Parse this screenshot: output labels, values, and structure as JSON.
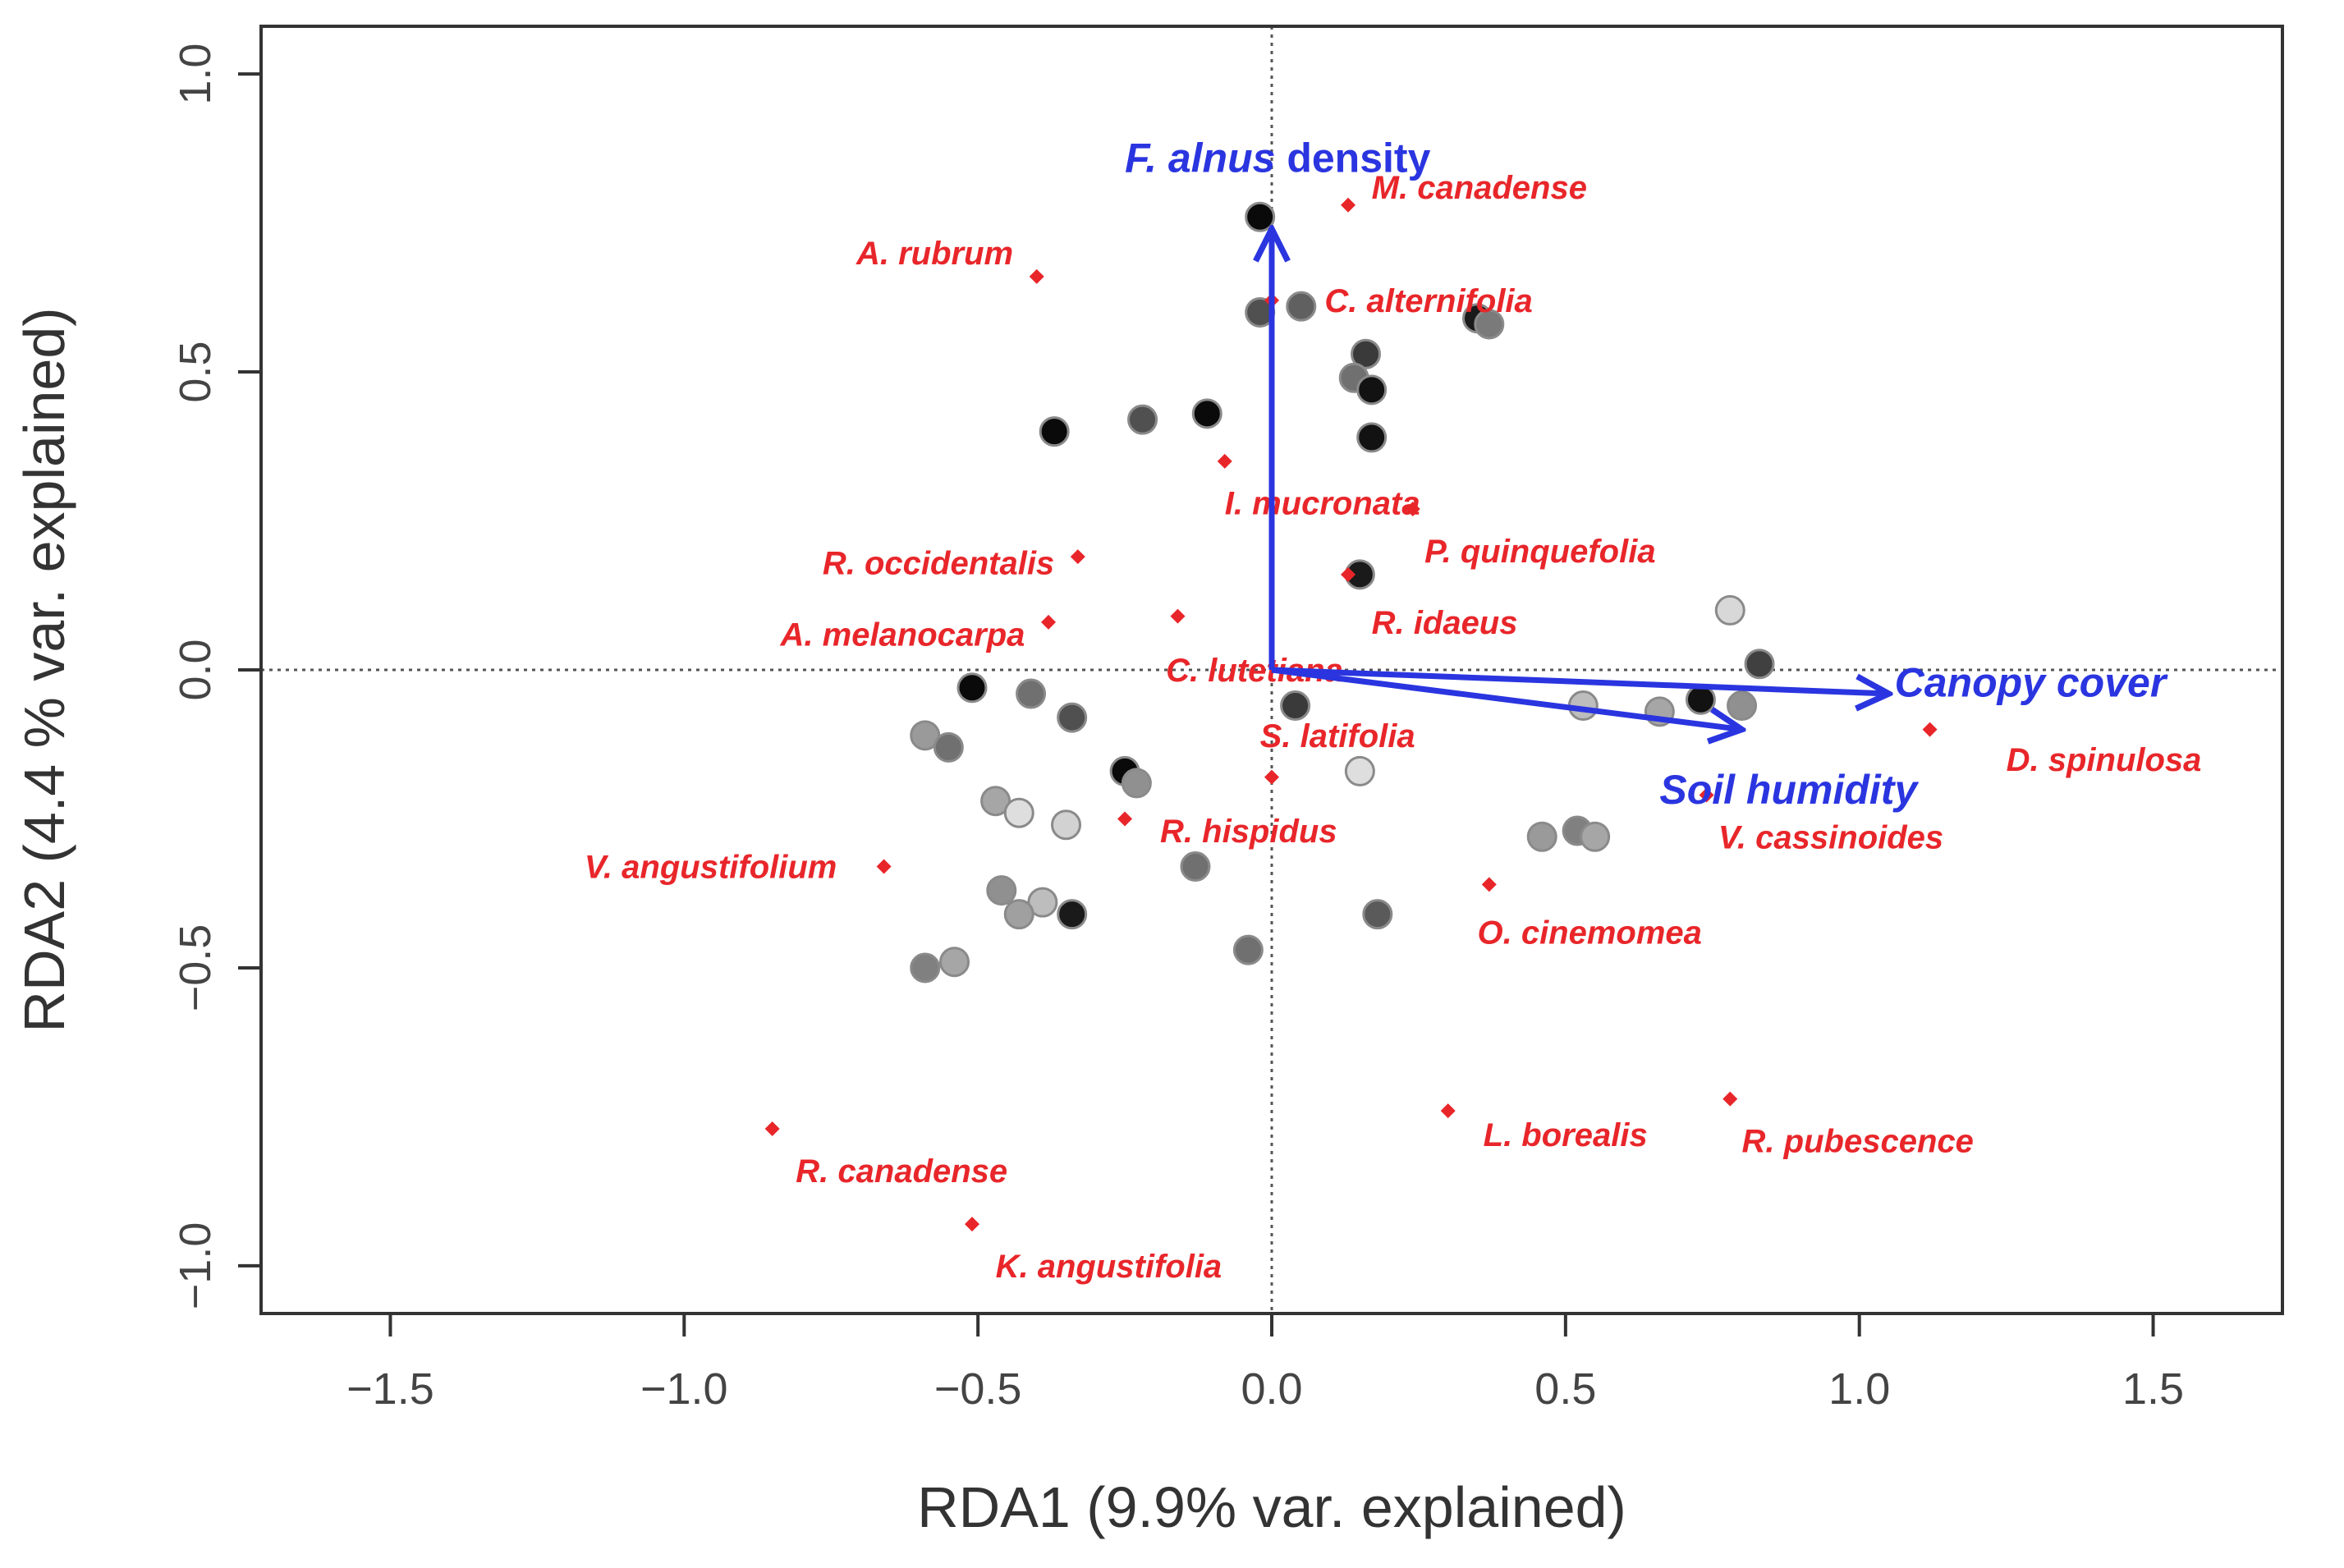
{
  "chart_data": {
    "type": "scatter",
    "subtype": "rda_triplot",
    "title": "",
    "xlabel": "RDA1 (9.9% var. explained)",
    "ylabel": "RDA2 (4.4 % var. explained)",
    "xlim": [
      -1.72,
      1.72
    ],
    "ylim": [
      -1.08,
      1.08
    ],
    "xticks": [
      {
        "value": -1.5,
        "label": "−1.5"
      },
      {
        "value": -1.0,
        "label": "−1.0"
      },
      {
        "value": -0.5,
        "label": "−0.5"
      },
      {
        "value": 0.0,
        "label": "0.0"
      },
      {
        "value": 0.5,
        "label": "0.5"
      },
      {
        "value": 1.0,
        "label": "1.0"
      },
      {
        "value": 1.5,
        "label": "1.5"
      }
    ],
    "yticks": [
      {
        "value": -1.0,
        "label": "−1.0"
      },
      {
        "value": -0.5,
        "label": "−0.5"
      },
      {
        "value": 0.0,
        "label": "0.0"
      },
      {
        "value": 0.5,
        "label": "0.5"
      },
      {
        "value": 1.0,
        "label": "1.0"
      }
    ],
    "grid": false,
    "zero_lines": true,
    "colors": {
      "species": "#e8262a",
      "vectors": "#2a35e0",
      "axes": "#333333"
    },
    "sites": [
      {
        "x": -0.02,
        "y": 0.76,
        "shade": "#0a0a0a"
      },
      {
        "x": -0.02,
        "y": 0.6,
        "shade": "#505050"
      },
      {
        "x": 0.05,
        "y": 0.61,
        "shade": "#606060"
      },
      {
        "x": 0.35,
        "y": 0.59,
        "shade": "#1a1a1a"
      },
      {
        "x": 0.37,
        "y": 0.58,
        "shade": "#7a7a7a"
      },
      {
        "x": 0.16,
        "y": 0.53,
        "shade": "#3a3a3a"
      },
      {
        "x": 0.14,
        "y": 0.49,
        "shade": "#707070"
      },
      {
        "x": 0.17,
        "y": 0.47,
        "shade": "#121212"
      },
      {
        "x": 0.17,
        "y": 0.39,
        "shade": "#121212"
      },
      {
        "x": -0.37,
        "y": 0.4,
        "shade": "#0a0a0a"
      },
      {
        "x": -0.22,
        "y": 0.42,
        "shade": "#505050"
      },
      {
        "x": -0.11,
        "y": 0.43,
        "shade": "#0a0a0a"
      },
      {
        "x": 0.15,
        "y": 0.16,
        "shade": "#1a1a1a"
      },
      {
        "x": 0.78,
        "y": 0.1,
        "shade": "#d8d8d8"
      },
      {
        "x": 0.83,
        "y": 0.01,
        "shade": "#404040"
      },
      {
        "x": 0.73,
        "y": -0.05,
        "shade": "#121212"
      },
      {
        "x": 0.8,
        "y": -0.06,
        "shade": "#909090"
      },
      {
        "x": 0.53,
        "y": -0.06,
        "shade": "#bdbdbd"
      },
      {
        "x": 0.66,
        "y": -0.07,
        "shade": "#a6a6a6"
      },
      {
        "x": 0.04,
        "y": -0.06,
        "shade": "#3a3a3a"
      },
      {
        "x": 0.15,
        "y": -0.17,
        "shade": "#dedede"
      },
      {
        "x": 0.46,
        "y": -0.28,
        "shade": "#9a9a9a"
      },
      {
        "x": 0.52,
        "y": -0.27,
        "shade": "#808080"
      },
      {
        "x": 0.55,
        "y": -0.28,
        "shade": "#a6a6a6"
      },
      {
        "x": 0.18,
        "y": -0.41,
        "shade": "#5a5a5a"
      },
      {
        "x": -0.51,
        "y": -0.03,
        "shade": "#0a0a0a"
      },
      {
        "x": -0.41,
        "y": -0.04,
        "shade": "#707070"
      },
      {
        "x": -0.34,
        "y": -0.08,
        "shade": "#505050"
      },
      {
        "x": -0.59,
        "y": -0.11,
        "shade": "#9a9a9a"
      },
      {
        "x": -0.55,
        "y": -0.13,
        "shade": "#707070"
      },
      {
        "x": -0.25,
        "y": -0.17,
        "shade": "#0a0a0a"
      },
      {
        "x": -0.23,
        "y": -0.19,
        "shade": "#909090"
      },
      {
        "x": -0.47,
        "y": -0.22,
        "shade": "#a6a6a6"
      },
      {
        "x": -0.43,
        "y": -0.24,
        "shade": "#dedede"
      },
      {
        "x": -0.35,
        "y": -0.26,
        "shade": "#d2d2d2"
      },
      {
        "x": -0.13,
        "y": -0.33,
        "shade": "#707070"
      },
      {
        "x": -0.46,
        "y": -0.37,
        "shade": "#909090"
      },
      {
        "x": -0.39,
        "y": -0.39,
        "shade": "#bdbdbd"
      },
      {
        "x": -0.43,
        "y": -0.41,
        "shade": "#a0a0a0"
      },
      {
        "x": -0.34,
        "y": -0.41,
        "shade": "#1a1a1a"
      },
      {
        "x": -0.59,
        "y": -0.5,
        "shade": "#808080"
      },
      {
        "x": -0.54,
        "y": -0.49,
        "shade": "#a6a6a6"
      },
      {
        "x": -0.04,
        "y": -0.47,
        "shade": "#707070"
      }
    ],
    "species": [
      {
        "name": "M. canadense",
        "x": 0.13,
        "y": 0.78,
        "label_anchor": "start",
        "label_dx": 0.04,
        "label_dy": 0.03
      },
      {
        "name": "A. rubrum",
        "x": -0.4,
        "y": 0.66,
        "label_anchor": "end",
        "label_dx": -0.04,
        "label_dy": 0.04
      },
      {
        "name": "C. alternifolia",
        "x": 0.0,
        "y": 0.62,
        "label_anchor": "start",
        "label_dx": 0.09,
        "label_dy": 0.0
      },
      {
        "name": "I. mucronata",
        "x": -0.08,
        "y": 0.35,
        "label_anchor": "start",
        "label_dx": 0.0,
        "label_dy": -0.07
      },
      {
        "name": "P. quinquefolia",
        "x": 0.24,
        "y": 0.27,
        "label_anchor": "start",
        "label_dx": 0.02,
        "label_dy": -0.07
      },
      {
        "name": "R. occidentalis",
        "x": -0.33,
        "y": 0.19,
        "label_anchor": "end",
        "label_dx": -0.04,
        "label_dy": -0.01
      },
      {
        "name": "R. idaeus",
        "x": 0.13,
        "y": 0.16,
        "label_anchor": "start",
        "label_dx": 0.04,
        "label_dy": -0.08
      },
      {
        "name": "A. melanocarpa",
        "x": -0.38,
        "y": 0.08,
        "label_anchor": "end",
        "label_dx": -0.04,
        "label_dy": -0.02
      },
      {
        "name": "C. lutetiana",
        "x": -0.16,
        "y": 0.09,
        "label_anchor": "start",
        "label_dx": -0.02,
        "label_dy": -0.09
      },
      {
        "name": "S. latifolia",
        "x": 0.0,
        "y": -0.18,
        "label_anchor": "start",
        "label_dx": -0.02,
        "label_dy": 0.07
      },
      {
        "name": "R. hispidus",
        "x": -0.25,
        "y": -0.25,
        "label_anchor": "start",
        "label_dx": 0.06,
        "label_dy": -0.02
      },
      {
        "name": "V. angustifolium",
        "x": -0.66,
        "y": -0.33,
        "label_anchor": "end",
        "label_dx": -0.08,
        "label_dy": 0.0
      },
      {
        "name": "O. cinemomea",
        "x": 0.37,
        "y": -0.36,
        "label_anchor": "start",
        "label_dx": -0.02,
        "label_dy": -0.08
      },
      {
        "name": "V. cassinoides",
        "x": 0.74,
        "y": -0.21,
        "label_anchor": "start",
        "label_dx": 0.02,
        "label_dy": -0.07
      },
      {
        "name": "D. spinulosa",
        "x": 1.12,
        "y": -0.1,
        "label_anchor": "start",
        "label_dx": 0.13,
        "label_dy": -0.05
      },
      {
        "name": "L. borealis",
        "x": 0.3,
        "y": -0.74,
        "label_anchor": "start",
        "label_dx": 0.06,
        "label_dy": -0.04
      },
      {
        "name": "R. pubescence",
        "x": 0.78,
        "y": -0.72,
        "label_anchor": "start",
        "label_dx": 0.02,
        "label_dy": -0.07
      },
      {
        "name": "R. canadense",
        "x": -0.85,
        "y": -0.77,
        "label_anchor": "start",
        "label_dx": 0.04,
        "label_dy": -0.07
      },
      {
        "name": "K. angustifolia",
        "x": -0.51,
        "y": -0.93,
        "label_anchor": "start",
        "label_dx": 0.04,
        "label_dy": -0.07
      }
    ],
    "vectors": [
      {
        "name_prefix": "F. alnus",
        "name_suffix": " density",
        "x": 0.0,
        "y": 0.74,
        "label_x": -0.25,
        "label_y": 0.86
      },
      {
        "name_prefix": "Canopy cover",
        "name_suffix": "",
        "x": 1.05,
        "y": -0.04,
        "label_x": 1.06,
        "label_y": -0.02
      },
      {
        "name_prefix": "Soil humidity",
        "name_suffix": "",
        "x": 0.8,
        "y": -0.1,
        "label_x": 0.66,
        "label_y": -0.2
      }
    ]
  }
}
